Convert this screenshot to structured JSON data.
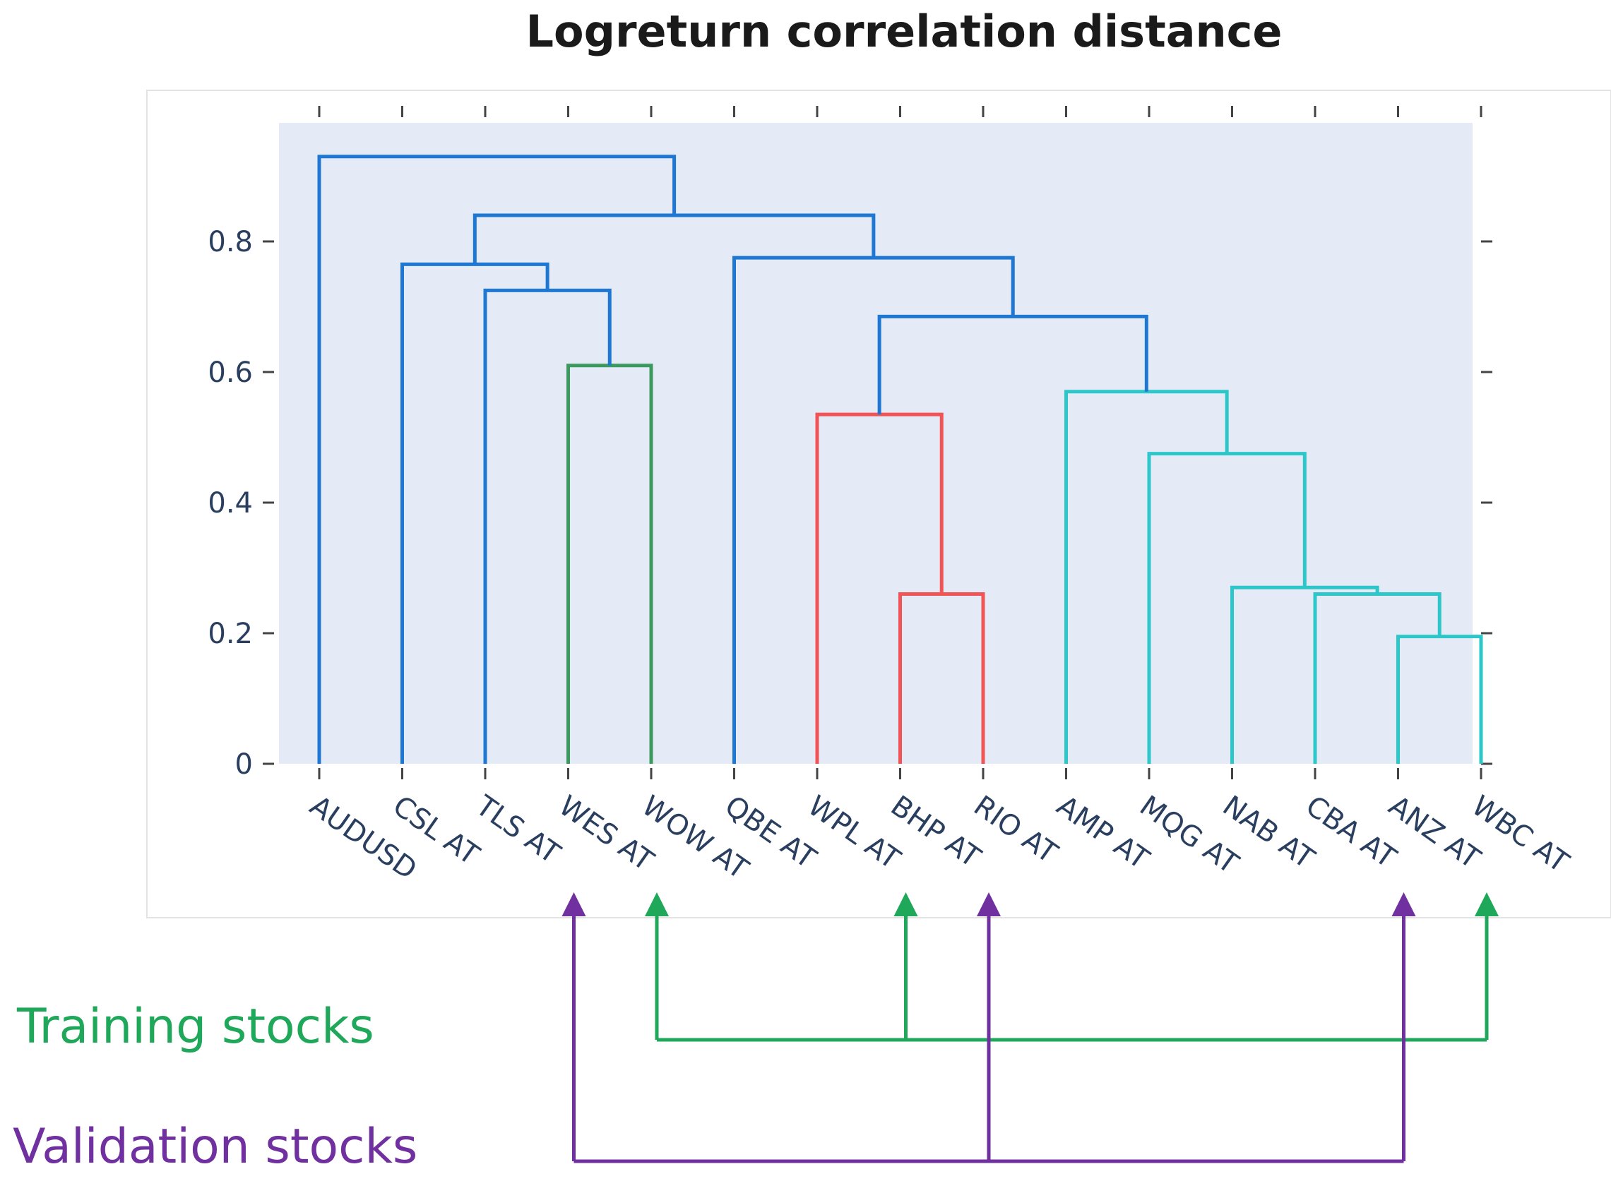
{
  "chart_data": {
    "type": "dendrogram",
    "title": "Logreturn correlation distance",
    "ylim": [
      0,
      0.95
    ],
    "yticks": [
      0,
      0.2,
      0.4,
      0.6,
      0.8
    ],
    "ytick_labels": [
      "0",
      "0.2",
      "0.4",
      "0.6",
      "0.8"
    ],
    "leaves": [
      "AUDUSD",
      "CSL AT",
      "TLS AT",
      "WES AT",
      "WOW AT",
      "QBE AT",
      "WPL AT",
      "BHP AT",
      "RIO AT",
      "AMP AT",
      "MQG AT",
      "NAB AT",
      "CBA AT",
      "ANZ AT",
      "WBC AT"
    ],
    "merges": [
      {
        "left": "ANZ AT",
        "right": "WBC AT",
        "height": 0.195,
        "color": "#2ec7c9"
      },
      {
        "left": "CBA AT",
        "right": "[ANZ,WBC]",
        "height": 0.26,
        "color": "#2ec7c9"
      },
      {
        "left": "NAB AT",
        "right": "[CBA,ANZ,WBC]",
        "height": 0.27,
        "color": "#2ec7c9"
      },
      {
        "left": "BHP AT",
        "right": "RIO AT",
        "height": 0.26,
        "color": "#f05454"
      },
      {
        "left": "MQG AT",
        "right": "[NAB,CBA,ANZ,WBC]",
        "height": 0.475,
        "color": "#2ec7c9"
      },
      {
        "left": "WPL AT",
        "right": "[BHP,RIO]",
        "height": 0.535,
        "color": "#f05454"
      },
      {
        "left": "AMP AT",
        "right": "[MQG..WBC]",
        "height": 0.57,
        "color": "#2ec7c9"
      },
      {
        "left": "WES AT",
        "right": "WOW AT",
        "height": 0.61,
        "color": "#3d9a5f"
      },
      {
        "left": "[WPL,BHP,RIO]",
        "right": "[AMP..WBC]",
        "height": 0.685,
        "color": "#1f77d4"
      },
      {
        "left": "TLS AT",
        "right": "[WES,WOW]",
        "height": 0.725,
        "color": "#1f77d4"
      },
      {
        "left": "CSL AT",
        "right": "[TLS,WES,WOW]",
        "height": 0.765,
        "color": "#1f77d4"
      },
      {
        "left": "QBE AT",
        "right": "[WPL..WBC]",
        "height": 0.775,
        "color": "#1f77d4"
      },
      {
        "left": "[CSL..WOW]",
        "right": "[QBE..WBC]",
        "height": 0.84,
        "color": "#1f77d4"
      },
      {
        "left": "AUDUSD",
        "right": "[CSL..WBC]",
        "height": 0.93,
        "color": "#1f77d4"
      }
    ],
    "annotations": {
      "training": {
        "label": "Training stocks",
        "stocks": [
          "WOW AT",
          "BHP AT",
          "WBC AT"
        ],
        "color": "#1fa85a"
      },
      "validation": {
        "label": "Validation stocks",
        "stocks": [
          "WES AT",
          "RIO AT",
          "ANZ AT"
        ],
        "color": "#7030a0"
      }
    }
  }
}
